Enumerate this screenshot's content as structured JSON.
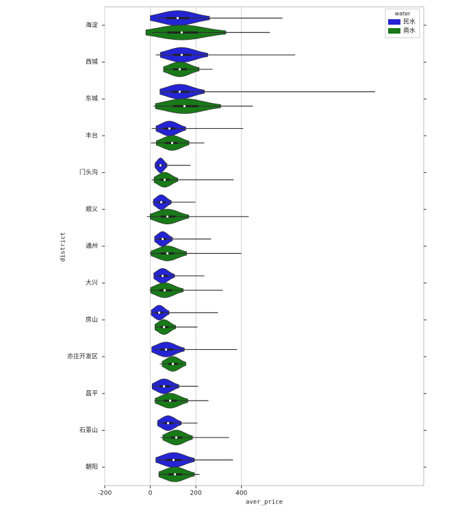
{
  "chart_data": {
    "type": "violin",
    "x_label": "aver_price",
    "y_label": "district",
    "legend_title": "water",
    "legend_loc": "upper right",
    "grid": true,
    "categories": [
      "海淀",
      "西城",
      "东城",
      "丰台",
      "门头沟",
      "顺义",
      "通州",
      "大兴",
      "房山",
      "亦庄开发区",
      "昌平",
      "石景山",
      "朝阳"
    ],
    "xlim": [
      -200,
      1200
    ],
    "xticks": [
      -200,
      0,
      200,
      400
    ],
    "series": [
      {
        "name": "民水",
        "color": "#2424d4",
        "min": [
          30,
          24,
          45,
          6,
          18,
          9,
          21,
          18,
          6,
          21,
          6,
          30,
          30
        ],
        "q1": [
          70,
          100,
          95,
          60,
          35,
          35,
          40,
          40,
          25,
          45,
          40,
          60,
          70
        ],
        "median": [
          120,
          138,
          129,
          84,
          45,
          48,
          54,
          54,
          39,
          69,
          60,
          78,
          102
        ],
        "q3": [
          170,
          180,
          170,
          110,
          55,
          65,
          70,
          75,
          55,
          100,
          85,
          100,
          135
        ],
        "max": [
          580,
          636,
          987,
          408,
          177,
          198,
          267,
          237,
          297,
          381,
          210,
          207,
          363
        ]
      },
      {
        "name": "商水",
        "color": "#187a18",
        "min": [
          6,
          60,
          15,
          3,
          6,
          -15,
          -3,
          -3,
          21,
          42,
          18,
          45,
          36
        ],
        "q1": [
          75,
          100,
          100,
          65,
          45,
          45,
          45,
          40,
          45,
          80,
          60,
          90,
          80
        ],
        "median": [
          138,
          129,
          150,
          96,
          63,
          75,
          75,
          63,
          60,
          99,
          87,
          114,
          108
        ],
        "q3": [
          210,
          160,
          210,
          120,
          85,
          110,
          105,
          95,
          80,
          120,
          115,
          140,
          140
        ],
        "max": [
          525,
          273,
          450,
          237,
          366,
          432,
          399,
          318,
          207,
          144,
          255,
          345,
          216
        ]
      }
    ]
  }
}
